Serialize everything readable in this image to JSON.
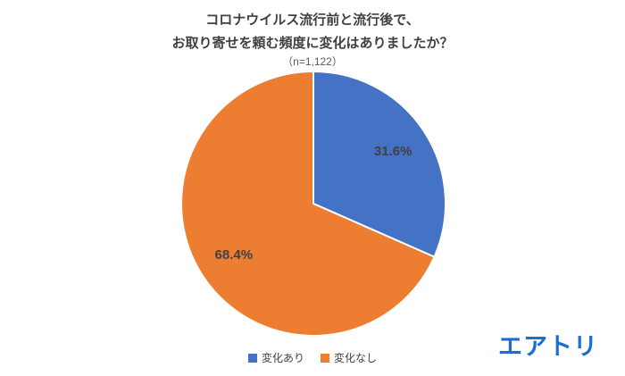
{
  "title": {
    "line1": "コロナウイルス流行前と流行後で、",
    "line2": "お取り寄せを頼む頻度に変化はありましたか？",
    "subtitle": "（n=1,122）"
  },
  "chart_data": {
    "type": "pie",
    "title": "コロナウイルス流行前と流行後で、お取り寄せを頼む頻度に変化はありましたか？",
    "sample_size_label": "（n=1,122）",
    "start_angle_deg": 0,
    "direction": "clockwise",
    "legend_position": "bottom",
    "text_color": "#404040",
    "segments": [
      {
        "label": "変化あり",
        "value": 31.6,
        "display": "31.6%",
        "color": "#4472C4"
      },
      {
        "label": "変化なし",
        "value": 68.4,
        "display": "68.4%",
        "color": "#ED7D31"
      }
    ]
  },
  "logo": {
    "text": "エアトリ",
    "color": "#1C6FD1"
  }
}
